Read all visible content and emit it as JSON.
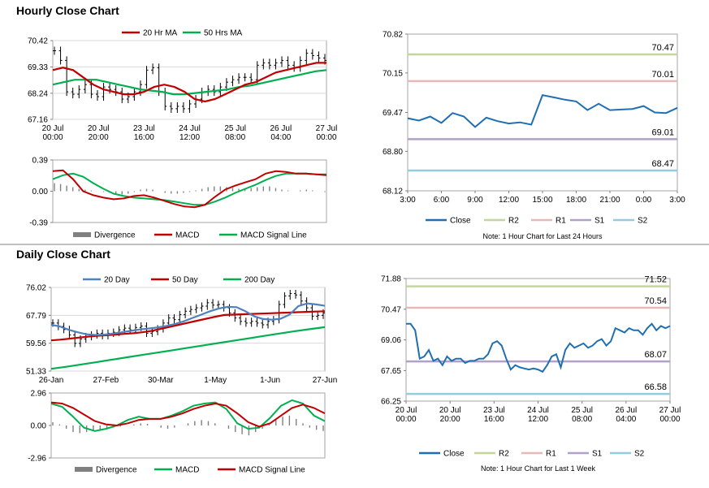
{
  "sections": {
    "hourly_title": "Hourly Close Chart",
    "daily_title": "Daily Close Chart"
  },
  "colors": {
    "ma_short": "#c00000",
    "ma_long": "#00b050",
    "blue": "#4f81bd",
    "close_line": "#1f6fb2",
    "r2": "#c3d69b",
    "r1": "#e6b9b8",
    "s1": "#b1a0c7",
    "s2": "#93cddd",
    "divergence": "#808080"
  },
  "chart_data": [
    {
      "id": "hourly-price",
      "type": "line",
      "title": "",
      "x_ticks": [
        "20 Jul\n00:00",
        "20 Jul\n20:00",
        "23 Jul\n16:00",
        "24 Jul\n12:00",
        "25 Jul\n08:00",
        "26 Jul\n04:00",
        "27 Jul\n00:00"
      ],
      "y_ticks": [
        "70.42",
        "69.33",
        "68.24",
        "67.16"
      ],
      "ylim": [
        67.16,
        70.42
      ],
      "legend": [
        "20 Hr MA",
        "50 Hrs MA"
      ],
      "series": [
        {
          "name": "Price",
          "kind": "ohlc",
          "values": [
            70.0,
            69.6,
            68.3,
            68.2,
            68.4,
            68.6,
            68.2,
            68.1,
            68.5,
            68.4,
            68.3,
            68.0,
            68.1,
            68.3,
            68.6,
            69.2,
            69.3,
            68.3,
            67.7,
            67.6,
            67.7,
            67.6,
            67.8,
            68.0,
            68.3,
            68.4,
            68.3,
            68.5,
            68.7,
            68.8,
            68.9,
            68.9,
            68.8,
            69.4,
            69.5,
            69.4,
            69.5,
            69.6,
            69.4,
            69.3,
            69.6,
            69.9,
            69.8,
            69.7,
            69.6
          ]
        },
        {
          "name": "20 Hr MA",
          "values": [
            69.2,
            69.3,
            69.2,
            68.9,
            68.6,
            68.4,
            68.3,
            68.2,
            68.2,
            68.3,
            68.5,
            68.6,
            68.5,
            68.3,
            68.0,
            67.9,
            68.0,
            68.2,
            68.4,
            68.6,
            68.7,
            68.9,
            69.1,
            69.2,
            69.3,
            69.4,
            69.5,
            69.5
          ]
        },
        {
          "name": "50 Hrs MA",
          "values": [
            68.6,
            68.7,
            68.8,
            68.8,
            68.8,
            68.7,
            68.6,
            68.5,
            68.4,
            68.35,
            68.3,
            68.2,
            68.2,
            68.25,
            68.3,
            68.35,
            68.4,
            68.5,
            68.55,
            68.65,
            68.75,
            68.85,
            68.95,
            69.05,
            69.15,
            69.2
          ]
        }
      ]
    },
    {
      "id": "hourly-macd",
      "type": "line",
      "y_ticks": [
        "0.39",
        "0.00",
        "-0.39"
      ],
      "ylim": [
        -0.39,
        0.39
      ],
      "legend": [
        "Divergence",
        "MACD",
        "MACD Signal Line"
      ],
      "series": [
        {
          "name": "Divergence",
          "kind": "bar",
          "values": [
            0.1,
            0.09,
            0.07,
            0.05,
            0.03,
            0.02,
            0.01,
            0.0,
            -0.01,
            -0.02,
            -0.03,
            -0.04,
            -0.03,
            -0.01,
            0.02,
            0.03,
            0.02,
            0.0,
            -0.02,
            -0.03,
            -0.03,
            -0.02,
            -0.01,
            0.01,
            0.03,
            0.05,
            0.06,
            0.06,
            0.05,
            0.04,
            0.03,
            0.03,
            0.04,
            0.05,
            0.06,
            0.06,
            0.04,
            0.02,
            0.01,
            0.0,
            0.01,
            0.02,
            0.01,
            0.0,
            -0.01
          ]
        },
        {
          "name": "MACD",
          "values": [
            0.25,
            0.26,
            0.15,
            0.0,
            -0.05,
            -0.08,
            -0.1,
            -0.09,
            -0.06,
            -0.05,
            -0.08,
            -0.12,
            -0.16,
            -0.19,
            -0.2,
            -0.17,
            -0.07,
            0.02,
            0.07,
            0.11,
            0.15,
            0.22,
            0.25,
            0.24,
            0.22,
            0.22,
            0.21,
            0.2
          ]
        },
        {
          "name": "MACD Signal Line",
          "values": [
            0.15,
            0.2,
            0.22,
            0.18,
            0.1,
            0.03,
            -0.03,
            -0.06,
            -0.08,
            -0.09,
            -0.1,
            -0.11,
            -0.13,
            -0.15,
            -0.17,
            -0.17,
            -0.13,
            -0.08,
            -0.02,
            0.03,
            0.08,
            0.14,
            0.19,
            0.22,
            0.22,
            0.22,
            0.21,
            0.21
          ]
        }
      ]
    },
    {
      "id": "pivot-24h",
      "type": "line",
      "x_ticks": [
        "3:00",
        "6:00",
        "9:00",
        "12:00",
        "15:00",
        "18:00",
        "21:00",
        "0:00",
        "3:00"
      ],
      "y_ticks": [
        "70.82",
        "70.15",
        "69.47",
        "68.80",
        "68.12"
      ],
      "ylim": [
        68.12,
        70.82
      ],
      "legend": [
        "Close",
        "R2",
        "R1",
        "S1",
        "S2"
      ],
      "levels": [
        {
          "name": "R2",
          "value": 70.47,
          "label": "70.47"
        },
        {
          "name": "R1",
          "value": 70.01,
          "label": "70.01"
        },
        {
          "name": "S1",
          "value": 69.01,
          "label": "69.01"
        },
        {
          "name": "S2",
          "value": 68.47,
          "label": "68.47"
        }
      ],
      "series": [
        {
          "name": "Close",
          "values": [
            69.37,
            69.33,
            69.4,
            69.29,
            69.46,
            69.4,
            69.22,
            69.38,
            69.32,
            69.28,
            69.3,
            69.26,
            69.77,
            69.73,
            69.69,
            69.66,
            69.51,
            69.62,
            69.51,
            69.52,
            69.53,
            69.58,
            69.47,
            69.46,
            69.55
          ]
        }
      ],
      "note": "Note: 1 Hour Chart for Last 24 Hours"
    },
    {
      "id": "daily-price",
      "type": "line",
      "x_ticks": [
        "26-Jan",
        "27-Feb",
        "30-Mar",
        "1-May",
        "1-Jun",
        "27-Jun"
      ],
      "y_ticks": [
        "76.02",
        "67.79",
        "59.56",
        "51.33"
      ],
      "ylim": [
        51.33,
        76.02
      ],
      "legend": [
        "20 Day",
        "50 Day",
        "200 Day"
      ],
      "series": [
        {
          "name": "Price",
          "kind": "ohlc",
          "values": [
            65.5,
            64.5,
            63.6,
            62.0,
            59.5,
            60.8,
            61.5,
            62.0,
            62.5,
            61.8,
            62.5,
            62.8,
            63.5,
            64.0,
            63.5,
            64.2,
            64.6,
            62.5,
            63.0,
            63.8,
            65.5,
            67.0,
            66.5,
            68.0,
            69.0,
            69.5,
            70.0,
            70.5,
            71.5,
            70.8,
            71.0,
            70.0,
            68.5,
            67.0,
            66.0,
            65.5,
            66.0,
            65.5,
            65.0,
            66.0,
            66.5,
            71.0,
            73.5,
            74.2,
            73.8,
            72.0,
            70.0,
            67.5,
            67.8,
            68.5
          ]
        },
        {
          "name": "20 Day",
          "values": [
            65.0,
            64.5,
            63.5,
            62.8,
            62.2,
            62.0,
            62.1,
            62.4,
            62.8,
            63.2,
            63.6,
            63.9,
            64.2,
            64.6,
            65.2,
            66.0,
            67.0,
            68.0,
            69.0,
            69.8,
            70.3,
            70.2,
            69.0,
            67.5,
            66.7,
            66.5,
            66.8,
            68.0,
            70.5,
            71.3,
            71.0,
            70.6
          ]
        },
        {
          "name": "50 Day",
          "values": [
            60.4,
            60.6,
            60.9,
            61.2,
            61.5,
            61.7,
            61.9,
            62.1,
            62.3,
            62.5,
            62.8,
            63.2,
            63.8,
            64.4,
            65.0,
            65.6,
            66.2,
            66.8,
            67.4,
            67.9,
            68.0,
            68.1,
            68.2,
            68.3,
            68.4,
            68.5,
            68.6,
            68.7,
            68.8,
            68.9,
            69.0
          ]
        },
        {
          "name": "200 Day",
          "values": [
            52.0,
            52.6,
            53.3,
            54.0,
            54.7,
            55.4,
            56.1,
            56.8,
            57.5,
            58.2,
            58.9,
            59.6,
            60.3,
            61.0,
            61.7,
            62.4,
            63.1,
            63.7,
            64.3
          ]
        }
      ]
    },
    {
      "id": "daily-macd",
      "type": "line",
      "y_ticks": [
        "2.96",
        "0.00",
        "-2.96"
      ],
      "ylim": [
        -2.96,
        2.96
      ],
      "legend": [
        "Divergence",
        "MACD",
        "MACD Signal Line"
      ],
      "series": [
        {
          "name": "Divergence",
          "kind": "bar",
          "values": [
            0.3,
            0.1,
            -0.3,
            -0.6,
            -0.7,
            -0.6,
            -0.5,
            -0.4,
            -0.3,
            -0.2,
            -0.1,
            0.0,
            0.1,
            0.2,
            0.15,
            0.0,
            -0.2,
            -0.3,
            -0.2,
            0.0,
            0.2,
            0.4,
            0.5,
            0.4,
            0.2,
            0.0,
            -0.3,
            -0.6,
            -0.8,
            -0.9,
            -0.6,
            -0.3,
            0.1,
            0.5,
            0.8,
            0.9,
            0.6,
            0.2,
            -0.2,
            -0.4,
            -0.5
          ]
        },
        {
          "name": "MACD",
          "values": [
            2.0,
            1.7,
            0.8,
            -0.2,
            -0.5,
            -0.3,
            0.0,
            0.5,
            0.8,
            0.6,
            0.6,
            0.9,
            1.3,
            1.8,
            2.0,
            2.1,
            1.5,
            0.2,
            -0.3,
            -0.2,
            0.7,
            1.8,
            2.3,
            2.0,
            0.9,
            0.4
          ]
        },
        {
          "name": "MACD Signal Line",
          "values": [
            2.1,
            2.0,
            1.6,
            1.0,
            0.4,
            0.1,
            0.0,
            0.2,
            0.5,
            0.6,
            0.6,
            0.8,
            1.1,
            1.5,
            1.8,
            2.0,
            1.8,
            1.1,
            0.3,
            -0.1,
            0.2,
            0.9,
            1.6,
            1.9,
            1.6,
            1.1
          ]
        }
      ]
    },
    {
      "id": "pivot-1w",
      "type": "line",
      "x_ticks": [
        "20 Jul\n00:00",
        "20 Jul\n20:00",
        "23 Jul\n16:00",
        "24 Jul\n12:00",
        "25 Jul\n08:00",
        "26 Jul\n04:00",
        "27 Jul\n00:00"
      ],
      "y_ticks": [
        "71.88",
        "70.47",
        "69.06",
        "67.65",
        "66.25"
      ],
      "ylim": [
        66.25,
        71.88
      ],
      "legend": [
        "Close",
        "R2",
        "R1",
        "S1",
        "S2"
      ],
      "levels": [
        {
          "name": "R2",
          "value": 71.52,
          "label": "71.52"
        },
        {
          "name": "R1",
          "value": 70.54,
          "label": "70.54"
        },
        {
          "name": "S1",
          "value": 68.07,
          "label": "68.07"
        },
        {
          "name": "S2",
          "value": 66.58,
          "label": "66.58"
        }
      ],
      "series": [
        {
          "name": "Close",
          "values": [
            69.8,
            69.8,
            69.5,
            68.2,
            68.3,
            68.6,
            68.1,
            68.2,
            67.9,
            68.3,
            68.1,
            68.2,
            68.2,
            68.0,
            68.1,
            68.1,
            68.2,
            68.2,
            68.4,
            68.9,
            69.0,
            68.8,
            68.2,
            67.7,
            67.9,
            67.8,
            67.75,
            67.7,
            67.75,
            67.7,
            67.6,
            67.9,
            68.3,
            68.4,
            67.8,
            68.6,
            68.9,
            68.7,
            68.8,
            68.9,
            68.7,
            68.8,
            69.0,
            69.1,
            68.8,
            69.0,
            69.6,
            69.5,
            69.4,
            69.6,
            69.5,
            69.5,
            69.3,
            69.6,
            69.8,
            69.5,
            69.7,
            69.6,
            69.7
          ]
        }
      ],
      "note": "Note: 1 Hour Chart for Last 1 Week"
    }
  ]
}
